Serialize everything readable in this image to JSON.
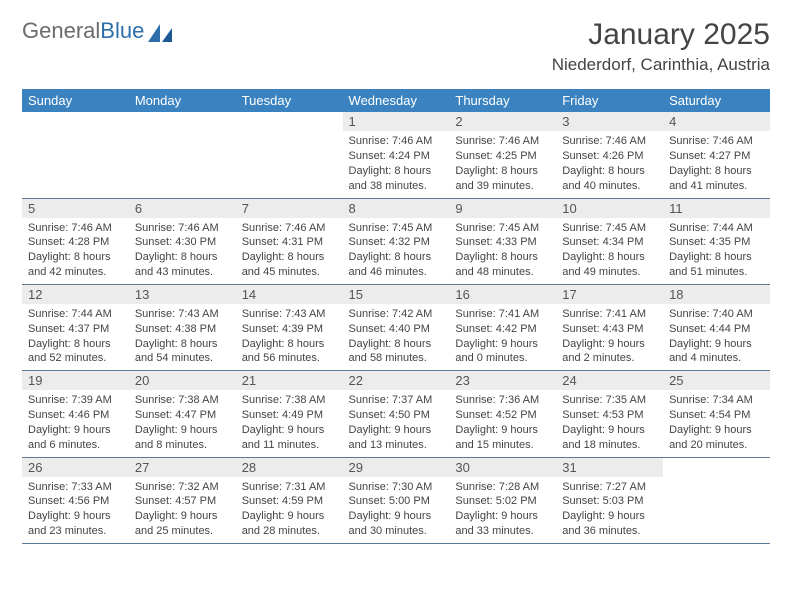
{
  "brand": {
    "name_gray": "General",
    "name_blue": "Blue"
  },
  "title": "January 2025",
  "location": "Niederdorf, Carinthia, Austria",
  "colors": {
    "header_bg": "#3b83c0",
    "header_text": "#ffffff",
    "daynum_bg": "#ececec",
    "row_border": "#5a7a9a",
    "text": "#444444",
    "logo_gray": "#6b6b6b",
    "logo_blue": "#2e6fab"
  },
  "weekdays": [
    "Sunday",
    "Monday",
    "Tuesday",
    "Wednesday",
    "Thursday",
    "Friday",
    "Saturday"
  ],
  "weeks": [
    [
      null,
      null,
      null,
      {
        "n": "1",
        "sr": "7:46 AM",
        "ss": "4:24 PM",
        "dl": "8 hours and 38 minutes."
      },
      {
        "n": "2",
        "sr": "7:46 AM",
        "ss": "4:25 PM",
        "dl": "8 hours and 39 minutes."
      },
      {
        "n": "3",
        "sr": "7:46 AM",
        "ss": "4:26 PM",
        "dl": "8 hours and 40 minutes."
      },
      {
        "n": "4",
        "sr": "7:46 AM",
        "ss": "4:27 PM",
        "dl": "8 hours and 41 minutes."
      }
    ],
    [
      {
        "n": "5",
        "sr": "7:46 AM",
        "ss": "4:28 PM",
        "dl": "8 hours and 42 minutes."
      },
      {
        "n": "6",
        "sr": "7:46 AM",
        "ss": "4:30 PM",
        "dl": "8 hours and 43 minutes."
      },
      {
        "n": "7",
        "sr": "7:46 AM",
        "ss": "4:31 PM",
        "dl": "8 hours and 45 minutes."
      },
      {
        "n": "8",
        "sr": "7:45 AM",
        "ss": "4:32 PM",
        "dl": "8 hours and 46 minutes."
      },
      {
        "n": "9",
        "sr": "7:45 AM",
        "ss": "4:33 PM",
        "dl": "8 hours and 48 minutes."
      },
      {
        "n": "10",
        "sr": "7:45 AM",
        "ss": "4:34 PM",
        "dl": "8 hours and 49 minutes."
      },
      {
        "n": "11",
        "sr": "7:44 AM",
        "ss": "4:35 PM",
        "dl": "8 hours and 51 minutes."
      }
    ],
    [
      {
        "n": "12",
        "sr": "7:44 AM",
        "ss": "4:37 PM",
        "dl": "8 hours and 52 minutes."
      },
      {
        "n": "13",
        "sr": "7:43 AM",
        "ss": "4:38 PM",
        "dl": "8 hours and 54 minutes."
      },
      {
        "n": "14",
        "sr": "7:43 AM",
        "ss": "4:39 PM",
        "dl": "8 hours and 56 minutes."
      },
      {
        "n": "15",
        "sr": "7:42 AM",
        "ss": "4:40 PM",
        "dl": "8 hours and 58 minutes."
      },
      {
        "n": "16",
        "sr": "7:41 AM",
        "ss": "4:42 PM",
        "dl": "9 hours and 0 minutes."
      },
      {
        "n": "17",
        "sr": "7:41 AM",
        "ss": "4:43 PM",
        "dl": "9 hours and 2 minutes."
      },
      {
        "n": "18",
        "sr": "7:40 AM",
        "ss": "4:44 PM",
        "dl": "9 hours and 4 minutes."
      }
    ],
    [
      {
        "n": "19",
        "sr": "7:39 AM",
        "ss": "4:46 PM",
        "dl": "9 hours and 6 minutes."
      },
      {
        "n": "20",
        "sr": "7:38 AM",
        "ss": "4:47 PM",
        "dl": "9 hours and 8 minutes."
      },
      {
        "n": "21",
        "sr": "7:38 AM",
        "ss": "4:49 PM",
        "dl": "9 hours and 11 minutes."
      },
      {
        "n": "22",
        "sr": "7:37 AM",
        "ss": "4:50 PM",
        "dl": "9 hours and 13 minutes."
      },
      {
        "n": "23",
        "sr": "7:36 AM",
        "ss": "4:52 PM",
        "dl": "9 hours and 15 minutes."
      },
      {
        "n": "24",
        "sr": "7:35 AM",
        "ss": "4:53 PM",
        "dl": "9 hours and 18 minutes."
      },
      {
        "n": "25",
        "sr": "7:34 AM",
        "ss": "4:54 PM",
        "dl": "9 hours and 20 minutes."
      }
    ],
    [
      {
        "n": "26",
        "sr": "7:33 AM",
        "ss": "4:56 PM",
        "dl": "9 hours and 23 minutes."
      },
      {
        "n": "27",
        "sr": "7:32 AM",
        "ss": "4:57 PM",
        "dl": "9 hours and 25 minutes."
      },
      {
        "n": "28",
        "sr": "7:31 AM",
        "ss": "4:59 PM",
        "dl": "9 hours and 28 minutes."
      },
      {
        "n": "29",
        "sr": "7:30 AM",
        "ss": "5:00 PM",
        "dl": "9 hours and 30 minutes."
      },
      {
        "n": "30",
        "sr": "7:28 AM",
        "ss": "5:02 PM",
        "dl": "9 hours and 33 minutes."
      },
      {
        "n": "31",
        "sr": "7:27 AM",
        "ss": "5:03 PM",
        "dl": "9 hours and 36 minutes."
      },
      null
    ]
  ],
  "labels": {
    "sunrise": "Sunrise:",
    "sunset": "Sunset:",
    "daylight": "Daylight:"
  }
}
